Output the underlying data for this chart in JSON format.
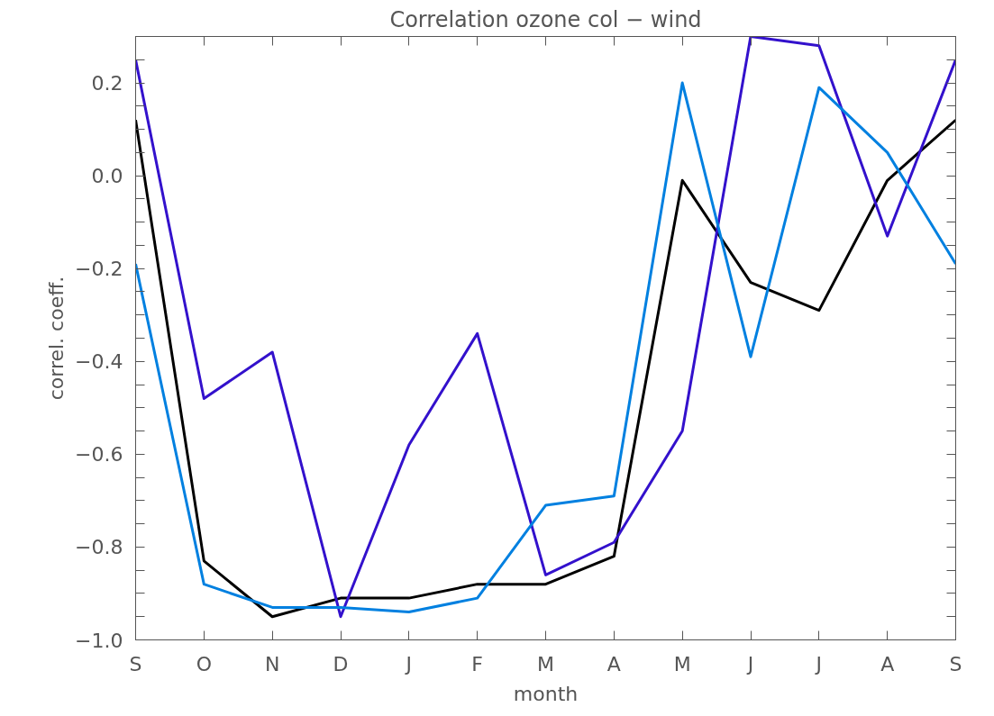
{
  "chart_data": {
    "type": "line",
    "title": "Correlation ozone col − wind",
    "xlabel": "month",
    "ylabel": "correl. coeff.",
    "categories": [
      "S",
      "O",
      "N",
      "D",
      "J",
      "F",
      "M",
      "A",
      "M",
      "J",
      "J",
      "A",
      "S"
    ],
    "series": [
      {
        "color": "#000000",
        "values": [
          0.12,
          -0.83,
          -0.95,
          -0.91,
          -0.91,
          -0.88,
          -0.88,
          -0.82,
          -0.01,
          -0.23,
          -0.29,
          -0.01,
          0.12
        ]
      },
      {
        "color": "#3311cc",
        "values": [
          0.25,
          -0.48,
          -0.38,
          -0.95,
          -0.58,
          -0.34,
          -0.86,
          -0.79,
          -0.55,
          0.3,
          0.28,
          -0.13,
          0.25
        ]
      },
      {
        "color": "#0080e0",
        "values": [
          -0.19,
          -0.88,
          -0.93,
          -0.93,
          -0.94,
          -0.91,
          -0.71,
          -0.69,
          0.2,
          -0.39,
          0.19,
          0.05,
          -0.19
        ]
      }
    ],
    "ylim": [
      -1.0,
      0.3
    ],
    "yticks": [
      {
        "value": -1.0,
        "label": "−1.0"
      },
      {
        "value": -0.95,
        "label": null
      },
      {
        "value": -0.9,
        "label": null
      },
      {
        "value": -0.85,
        "label": null
      },
      {
        "value": -0.8,
        "label": "−0.8"
      },
      {
        "value": -0.75,
        "label": null
      },
      {
        "value": -0.7,
        "label": null
      },
      {
        "value": -0.65,
        "label": null
      },
      {
        "value": -0.6,
        "label": "−0.6"
      },
      {
        "value": -0.55,
        "label": null
      },
      {
        "value": -0.5,
        "label": null
      },
      {
        "value": -0.45,
        "label": null
      },
      {
        "value": -0.4,
        "label": "−0.4"
      },
      {
        "value": -0.35,
        "label": null
      },
      {
        "value": -0.3,
        "label": null
      },
      {
        "value": -0.25,
        "label": null
      },
      {
        "value": -0.2,
        "label": "−0.2"
      },
      {
        "value": -0.15,
        "label": null
      },
      {
        "value": -0.1,
        "label": null
      },
      {
        "value": -0.05,
        "label": null
      },
      {
        "value": 0.0,
        "label": "0.0"
      },
      {
        "value": 0.05,
        "label": null
      },
      {
        "value": 0.1,
        "label": null
      },
      {
        "value": 0.15,
        "label": null
      },
      {
        "value": 0.2,
        "label": "0.2"
      },
      {
        "value": 0.25,
        "label": null
      }
    ],
    "grid": false,
    "marker": "none",
    "line_style": "solid"
  }
}
